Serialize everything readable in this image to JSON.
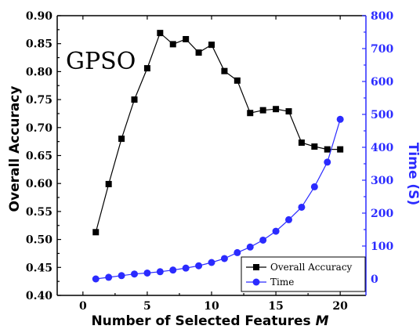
{
  "chart_data": {
    "type": "line",
    "annotation": "GPSO",
    "xlabel": "Number of Selected Features",
    "xlabel_var": "M",
    "ylabel": "Overall Accuracy",
    "y2label": "Time (S)",
    "xlim": [
      -2,
      22
    ],
    "ylim": [
      0.4,
      0.9
    ],
    "y2lim": [
      -50,
      800
    ],
    "xticks": [
      "0",
      "5",
      "10",
      "15",
      "20"
    ],
    "xtick_values": [
      0,
      5,
      10,
      15,
      20
    ],
    "yticks": [
      "0.40",
      "0.45",
      "0.50",
      "0.55",
      "0.60",
      "0.65",
      "0.70",
      "0.75",
      "0.80",
      "0.85",
      "0.90"
    ],
    "ytick_values": [
      0.4,
      0.45,
      0.5,
      0.55,
      0.6,
      0.65,
      0.7,
      0.75,
      0.8,
      0.85,
      0.9
    ],
    "y2ticks": [
      "0",
      "100",
      "200",
      "300",
      "400",
      "500",
      "600",
      "700",
      "800"
    ],
    "y2tick_values": [
      0,
      100,
      200,
      300,
      400,
      500,
      600,
      700,
      800
    ],
    "legend_position": "bottom-right",
    "colors": {
      "accuracy": "#000000",
      "time": "#2b2bff"
    },
    "x": [
      1,
      2,
      3,
      4,
      5,
      6,
      7,
      8,
      9,
      10,
      11,
      12,
      13,
      14,
      15,
      16,
      17,
      18,
      19,
      20
    ],
    "series": [
      {
        "name": "Overall Accuracy",
        "axis": "left",
        "marker": "square",
        "values": [
          0.513,
          0.599,
          0.68,
          0.75,
          0.806,
          0.869,
          0.849,
          0.858,
          0.834,
          0.848,
          0.801,
          0.784,
          0.726,
          0.731,
          0.733,
          0.729,
          0.673,
          0.666,
          0.661,
          0.661
        ]
      },
      {
        "name": "Time",
        "axis": "right",
        "marker": "circle",
        "values": [
          0,
          5,
          10,
          15,
          18,
          22,
          27,
          33,
          40,
          50,
          62,
          80,
          97,
          118,
          145,
          180,
          218,
          280,
          355,
          485
        ]
      }
    ]
  }
}
